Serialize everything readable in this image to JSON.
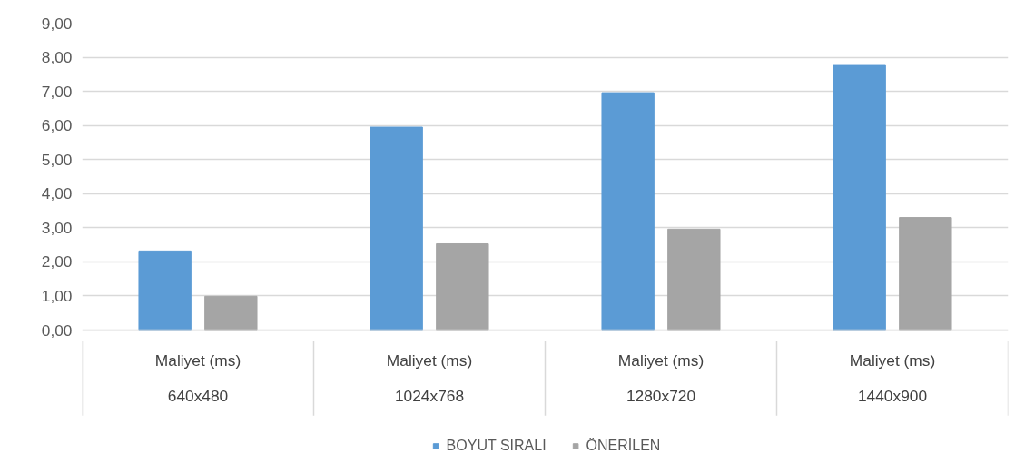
{
  "chart_data": {
    "type": "bar",
    "categories": [
      "Maliyet (ms)\n640x480",
      "Maliyet (ms)\n1024x768",
      "Maliyet (ms)\n1280x720",
      "Maliyet (ms)\n1440x900"
    ],
    "series": [
      {
        "name": "BOYUT SIRALI",
        "color": "#5b9bd5",
        "values": [
          2.32,
          5.95,
          6.96,
          7.76
        ]
      },
      {
        "name": "ÖNERİLEN",
        "color": "#a5a5a5",
        "values": [
          0.99,
          2.53,
          2.96,
          3.3
        ]
      }
    ],
    "ylim": [
      0,
      9
    ],
    "yticks": [
      {
        "value": 0,
        "label": "0,00"
      },
      {
        "value": 1,
        "label": "1,00"
      },
      {
        "value": 2,
        "label": "2,00"
      },
      {
        "value": 3,
        "label": "3,00"
      },
      {
        "value": 4,
        "label": "4,00"
      },
      {
        "value": 5,
        "label": "5,00"
      },
      {
        "value": 6,
        "label": "6,00"
      },
      {
        "value": 7,
        "label": "7,00"
      },
      {
        "value": 8,
        "label": "8,00"
      },
      {
        "value": 9,
        "label": "9,00"
      }
    ],
    "grid": "y",
    "legend": "bottom"
  }
}
